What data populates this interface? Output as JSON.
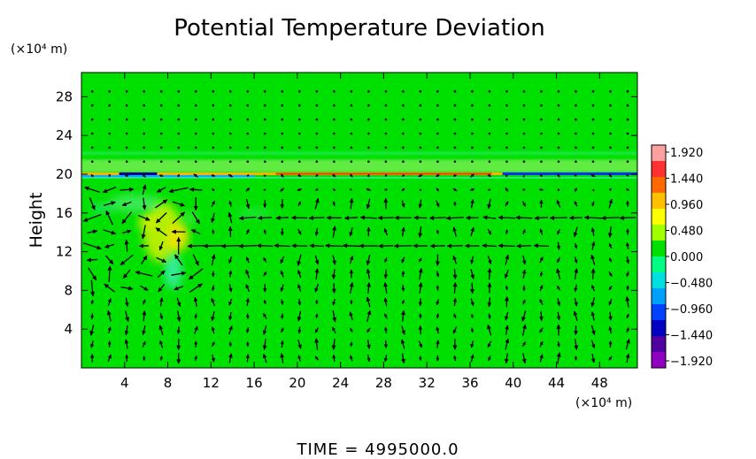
{
  "chart_data": {
    "type": "heatmap",
    "subtype": "contour-fill-with-vector-overlay",
    "title": "Potential Temperature Deviation",
    "ylabel": "Height",
    "y_unit": "(×10⁴ m)",
    "x_unit": "(×10⁴ m)",
    "xlim": [
      0,
      51.5
    ],
    "ylim": [
      0,
      30.5
    ],
    "x_ticks": [
      4,
      8,
      12,
      16,
      20,
      24,
      28,
      32,
      36,
      40,
      44,
      48
    ],
    "y_ticks": [
      4,
      8,
      12,
      16,
      20,
      24,
      28
    ],
    "colorbar": {
      "ticks": [
        "1.920",
        "1.440",
        "0.960",
        "0.480",
        "0.000",
        "−0.480",
        "−0.960",
        "−1.440",
        "−1.920"
      ],
      "range": [
        -1.92,
        1.92
      ],
      "colors": [
        "#ffa0a0",
        "#ff3030",
        "#ff6a00",
        "#ffc000",
        "#ffff00",
        "#a0ff00",
        "#00e000",
        "#00ff80",
        "#00e0e0",
        "#00a0ff",
        "#0040ff",
        "#0000c0",
        "#5000a0",
        "#9000c0"
      ]
    },
    "field_background": "#00e000",
    "features": [
      {
        "name": "tropopause-band",
        "y": 20,
        "x_range": [
          0,
          51.5
        ],
        "values": "±0.5 to ±1.9"
      },
      {
        "name": "upper-warm-streak",
        "y": 21,
        "x_range": [
          0,
          51.5
        ],
        "value": 0.3
      },
      {
        "name": "convective-plume",
        "x_range": [
          4,
          11
        ],
        "y_range": [
          8,
          18
        ],
        "values": "-0.5 to 0.9"
      }
    ],
    "wind_vectors": {
      "description": "Circulation arrows; strong westward flow near heights 12 and 16, weak near-vertical arrows elsewhere",
      "strong_layers": [
        {
          "y": 12,
          "x_range": [
            8,
            44
          ],
          "direction": "west"
        },
        {
          "y": 16,
          "x_range": [
            14,
            51
          ],
          "direction": "west"
        }
      ]
    },
    "time_label": "TIME  =  4995000.0"
  }
}
